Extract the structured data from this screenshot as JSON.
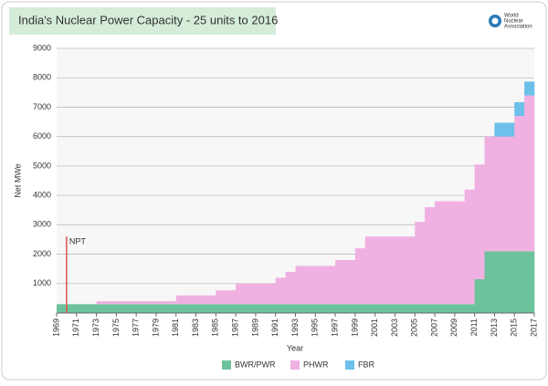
{
  "chart_data": {
    "type": "stacked-step-area",
    "title": "India's Nuclear Power Capacity - 25 units to 2016",
    "logo": [
      "World",
      "Nuclear",
      "Association"
    ],
    "xlabel": "Year",
    "ylabel": "Net MWe",
    "x": [
      1969,
      1970,
      1971,
      1972,
      1973,
      1974,
      1975,
      1976,
      1977,
      1978,
      1979,
      1980,
      1981,
      1982,
      1983,
      1984,
      1985,
      1986,
      1987,
      1988,
      1989,
      1990,
      1991,
      1992,
      1993,
      1994,
      1995,
      1996,
      1997,
      1998,
      1999,
      2000,
      2001,
      2002,
      2003,
      2004,
      2005,
      2006,
      2007,
      2008,
      2009,
      2010,
      2011,
      2012,
      2013,
      2014,
      2015,
      2016
    ],
    "series": [
      {
        "name": "BWR/PWR",
        "color": "#6cc39b",
        "values": [
          300,
          300,
          300,
          300,
          300,
          300,
          300,
          300,
          300,
          300,
          300,
          300,
          300,
          300,
          300,
          300,
          300,
          300,
          300,
          300,
          300,
          300,
          300,
          300,
          300,
          300,
          300,
          300,
          300,
          300,
          300,
          300,
          300,
          300,
          300,
          300,
          300,
          300,
          300,
          300,
          300,
          300,
          1150,
          2100,
          2100,
          2100,
          2100,
          2100
        ]
      },
      {
        "name": "PHWR",
        "color": "#f0b0e2",
        "values": [
          0,
          0,
          0,
          0,
          100,
          100,
          100,
          100,
          100,
          100,
          100,
          100,
          300,
          300,
          300,
          300,
          470,
          470,
          700,
          700,
          700,
          700,
          900,
          1100,
          1300,
          1300,
          1300,
          1300,
          1500,
          1500,
          1900,
          2300,
          2300,
          2300,
          2300,
          2300,
          2800,
          3300,
          3500,
          3500,
          3500,
          3900,
          3900,
          3900,
          3900,
          3900,
          4600,
          5300
        ]
      },
      {
        "name": "FBR",
        "color": "#6cc0ea",
        "values": [
          0,
          0,
          0,
          0,
          0,
          0,
          0,
          0,
          0,
          0,
          0,
          0,
          0,
          0,
          0,
          0,
          0,
          0,
          0,
          0,
          0,
          0,
          0,
          0,
          0,
          0,
          0,
          0,
          0,
          0,
          0,
          0,
          0,
          0,
          0,
          0,
          0,
          0,
          0,
          0,
          0,
          0,
          0,
          0,
          470,
          470,
          470,
          470
        ]
      }
    ],
    "annotation": {
      "text": "NPT",
      "x": 1970,
      "y": 2600,
      "color": "#e05050"
    },
    "xlim": [
      1969,
      2017
    ],
    "xticks": [
      1969,
      1971,
      1973,
      1975,
      1977,
      1979,
      1981,
      1983,
      1985,
      1987,
      1989,
      1991,
      1993,
      1995,
      1997,
      1999,
      2001,
      2003,
      2005,
      2007,
      2009,
      2011,
      2013,
      2015,
      2017
    ],
    "ylim": [
      0,
      9000
    ],
    "yticks": [
      1000,
      2000,
      3000,
      4000,
      5000,
      6000,
      7000,
      8000,
      9000
    ],
    "grid": true,
    "legend": "bottom"
  }
}
